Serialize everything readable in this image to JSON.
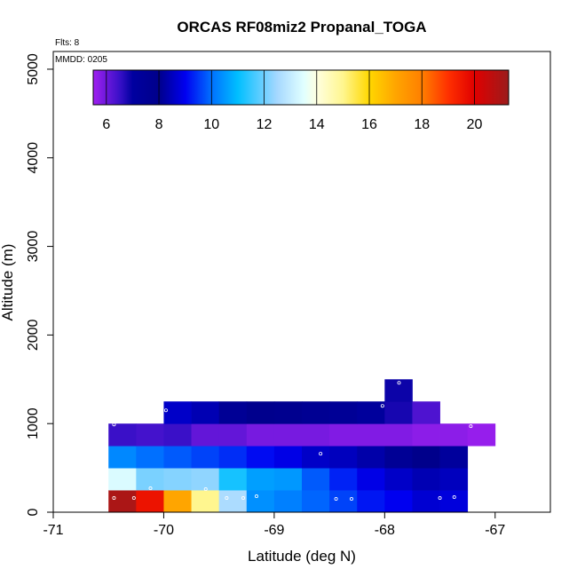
{
  "colors": {
    "frame": "#000000",
    "marker": "#ffffff"
  },
  "chart_data": {
    "type": "heatmap",
    "title": "ORCAS RF08miz2 Propanal_TOGA",
    "xlabel": "Latitude (deg N)",
    "ylabel": "Altitude (m)",
    "xlim": [
      -71,
      -66.5
    ],
    "ylim": [
      0,
      5200
    ],
    "x_ticks": [
      -71,
      -70,
      -69,
      -68,
      -67
    ],
    "x_tick_labels": [
      "-71",
      "-70",
      "-69",
      "-68",
      "-67"
    ],
    "y_ticks": [
      0,
      1000,
      2000,
      3000,
      4000,
      5000
    ],
    "y_tick_labels": [
      "0",
      "1000",
      "2000",
      "3000",
      "4000",
      "5000"
    ],
    "flights_note": "Flts: 8",
    "date_note": "MMDD: 0205",
    "colorbar": {
      "range": [
        5.5,
        21.3
      ],
      "ticks": [
        6,
        8,
        10,
        12,
        14,
        16,
        18,
        20
      ],
      "tick_labels": [
        "6",
        "8",
        "10",
        "12",
        "14",
        "16",
        "18",
        "20"
      ],
      "stops": [
        {
          "v": 5.5,
          "c": "#a020f0"
        },
        {
          "v": 6.5,
          "c": "#3a10c8"
        },
        {
          "v": 7.0,
          "c": "#0000a0"
        },
        {
          "v": 8.0,
          "c": "#00008b"
        },
        {
          "v": 9.0,
          "c": "#0000f0"
        },
        {
          "v": 10.0,
          "c": "#0070ff"
        },
        {
          "v": 11.0,
          "c": "#00bfff"
        },
        {
          "v": 12.5,
          "c": "#a6d8ff"
        },
        {
          "v": 13.5,
          "c": "#e0ffff"
        },
        {
          "v": 14.0,
          "c": "#ffffe0"
        },
        {
          "v": 15.0,
          "c": "#fff68f"
        },
        {
          "v": 16.0,
          "c": "#ffd700"
        },
        {
          "v": 17.0,
          "c": "#ffa500"
        },
        {
          "v": 18.0,
          "c": "#ff7f00"
        },
        {
          "v": 19.0,
          "c": "#ff3000"
        },
        {
          "v": 20.0,
          "c": "#e00000"
        },
        {
          "v": 21.3,
          "c": "#9b1c1c"
        }
      ]
    },
    "cells": [
      {
        "x0": -70.5,
        "x1": -70.25,
        "y0": 0,
        "y1": 250,
        "v": 21.0
      },
      {
        "x0": -70.25,
        "x1": -70.0,
        "y0": 0,
        "y1": 250,
        "v": 19.6
      },
      {
        "x0": -70.0,
        "x1": -69.75,
        "y0": 0,
        "y1": 250,
        "v": 17.0
      },
      {
        "x0": -69.75,
        "x1": -69.5,
        "y0": 0,
        "y1": 250,
        "v": 15.0
      },
      {
        "x0": -69.5,
        "x1": -69.25,
        "y0": 0,
        "y1": 250,
        "v": 12.6
      },
      {
        "x0": -69.25,
        "x1": -69.0,
        "y0": 0,
        "y1": 250,
        "v": 10.4
      },
      {
        "x0": -69.0,
        "x1": -68.75,
        "y0": 0,
        "y1": 250,
        "v": 10.2
      },
      {
        "x0": -68.75,
        "x1": -68.5,
        "y0": 0,
        "y1": 250,
        "v": 9.9
      },
      {
        "x0": -68.5,
        "x1": -68.25,
        "y0": 0,
        "y1": 250,
        "v": 9.6
      },
      {
        "x0": -68.25,
        "x1": -68.0,
        "y0": 0,
        "y1": 250,
        "v": 9.2
      },
      {
        "x0": -68.0,
        "x1": -67.75,
        "y0": 0,
        "y1": 250,
        "v": 9.0
      },
      {
        "x0": -67.75,
        "x1": -67.5,
        "y0": 0,
        "y1": 250,
        "v": 8.7
      },
      {
        "x0": -67.5,
        "x1": -67.25,
        "y0": 0,
        "y1": 250,
        "v": 8.8
      },
      {
        "x0": -70.5,
        "x1": -70.25,
        "y0": 250,
        "y1": 500,
        "v": 13.4
      },
      {
        "x0": -70.25,
        "x1": -70.0,
        "y0": 250,
        "y1": 500,
        "v": 12.1
      },
      {
        "x0": -70.0,
        "x1": -69.75,
        "y0": 250,
        "y1": 500,
        "v": 12.2
      },
      {
        "x0": -69.75,
        "x1": -69.5,
        "y0": 250,
        "y1": 500,
        "v": 12.3
      },
      {
        "x0": -69.5,
        "x1": -69.25,
        "y0": 250,
        "y1": 500,
        "v": 11.2
      },
      {
        "x0": -69.25,
        "x1": -69.0,
        "y0": 250,
        "y1": 500,
        "v": 10.6
      },
      {
        "x0": -69.0,
        "x1": -68.75,
        "y0": 250,
        "y1": 500,
        "v": 10.5
      },
      {
        "x0": -68.75,
        "x1": -68.5,
        "y0": 250,
        "y1": 500,
        "v": 9.8
      },
      {
        "x0": -68.5,
        "x1": -68.25,
        "y0": 250,
        "y1": 500,
        "v": 9.3
      },
      {
        "x0": -68.25,
        "x1": -68.0,
        "y0": 250,
        "y1": 500,
        "v": 8.9
      },
      {
        "x0": -68.0,
        "x1": -67.75,
        "y0": 250,
        "y1": 500,
        "v": 8.6
      },
      {
        "x0": -67.75,
        "x1": -67.5,
        "y0": 250,
        "y1": 500,
        "v": 8.4
      },
      {
        "x0": -67.5,
        "x1": -67.25,
        "y0": 250,
        "y1": 500,
        "v": 8.5
      },
      {
        "x0": -70.5,
        "x1": -70.25,
        "y0": 500,
        "y1": 750,
        "v": 10.3
      },
      {
        "x0": -70.25,
        "x1": -70.0,
        "y0": 500,
        "y1": 750,
        "v": 10.0
      },
      {
        "x0": -70.0,
        "x1": -69.75,
        "y0": 500,
        "y1": 750,
        "v": 9.8
      },
      {
        "x0": -69.75,
        "x1": -69.5,
        "y0": 500,
        "y1": 750,
        "v": 9.6
      },
      {
        "x0": -69.5,
        "x1": -69.25,
        "y0": 500,
        "y1": 750,
        "v": 9.4
      },
      {
        "x0": -69.25,
        "x1": -69.0,
        "y0": 500,
        "y1": 750,
        "v": 9.1
      },
      {
        "x0": -69.0,
        "x1": -68.75,
        "y0": 500,
        "y1": 750,
        "v": 8.9
      },
      {
        "x0": -68.75,
        "x1": -68.5,
        "y0": 500,
        "y1": 750,
        "v": 8.6
      },
      {
        "x0": -68.5,
        "x1": -68.25,
        "y0": 500,
        "y1": 750,
        "v": 8.5
      },
      {
        "x0": -68.25,
        "x1": -68.0,
        "y0": 500,
        "y1": 750,
        "v": 8.3
      },
      {
        "x0": -68.0,
        "x1": -67.75,
        "y0": 500,
        "y1": 750,
        "v": 8.1
      },
      {
        "x0": -67.75,
        "x1": -67.5,
        "y0": 500,
        "y1": 750,
        "v": 8.0
      },
      {
        "x0": -67.5,
        "x1": -67.25,
        "y0": 500,
        "y1": 750,
        "v": 7.2
      },
      {
        "x0": -70.5,
        "x1": -70.25,
        "y0": 750,
        "y1": 1000,
        "v": 6.5
      },
      {
        "x0": -70.25,
        "x1": -70.0,
        "y0": 750,
        "y1": 1000,
        "v": 6.4
      },
      {
        "x0": -70.0,
        "x1": -69.75,
        "y0": 750,
        "y1": 1000,
        "v": 6.5
      },
      {
        "x0": -69.75,
        "x1": -69.5,
        "y0": 750,
        "y1": 1000,
        "v": 6.1
      },
      {
        "x0": -69.5,
        "x1": -69.25,
        "y0": 750,
        "y1": 1000,
        "v": 6.1
      },
      {
        "x0": -69.25,
        "x1": -69.0,
        "y0": 750,
        "y1": 1000,
        "v": 5.9
      },
      {
        "x0": -69.0,
        "x1": -68.75,
        "y0": 750,
        "y1": 1000,
        "v": 5.9
      },
      {
        "x0": -68.75,
        "x1": -68.5,
        "y0": 750,
        "y1": 1000,
        "v": 5.9
      },
      {
        "x0": -68.5,
        "x1": -68.25,
        "y0": 750,
        "y1": 1000,
        "v": 5.8
      },
      {
        "x0": -68.25,
        "x1": -68.0,
        "y0": 750,
        "y1": 1000,
        "v": 5.8
      },
      {
        "x0": -68.0,
        "x1": -67.75,
        "y0": 750,
        "y1": 1000,
        "v": 5.8
      },
      {
        "x0": -67.75,
        "x1": -67.5,
        "y0": 750,
        "y1": 1000,
        "v": 5.7
      },
      {
        "x0": -67.5,
        "x1": -67.25,
        "y0": 750,
        "y1": 1000,
        "v": 5.7
      },
      {
        "x0": -67.25,
        "x1": -67.0,
        "y0": 750,
        "y1": 1000,
        "v": 5.6
      },
      {
        "x0": -70.0,
        "x1": -69.75,
        "y0": 1000,
        "y1": 1250,
        "v": 8.6
      },
      {
        "x0": -69.75,
        "x1": -69.5,
        "y0": 1000,
        "y1": 1250,
        "v": 8.4
      },
      {
        "x0": -69.5,
        "x1": -69.25,
        "y0": 1000,
        "y1": 1250,
        "v": 8.1
      },
      {
        "x0": -69.25,
        "x1": -69.0,
        "y0": 1000,
        "y1": 1250,
        "v": 7.9
      },
      {
        "x0": -69.0,
        "x1": -68.75,
        "y0": 1000,
        "y1": 1250,
        "v": 7.8
      },
      {
        "x0": -68.75,
        "x1": -68.5,
        "y0": 1000,
        "y1": 1250,
        "v": 7.6
      },
      {
        "x0": -68.5,
        "x1": -68.25,
        "y0": 1000,
        "y1": 1250,
        "v": 7.5
      },
      {
        "x0": -68.25,
        "x1": -68.0,
        "y0": 1000,
        "y1": 1250,
        "v": 7.2
      },
      {
        "x0": -68.0,
        "x1": -67.75,
        "y0": 1000,
        "y1": 1250,
        "v": 6.8
      },
      {
        "x0": -67.75,
        "x1": -67.5,
        "y0": 1000,
        "y1": 1250,
        "v": 6.3
      },
      {
        "x0": -68.0,
        "x1": -67.75,
        "y0": 1250,
        "y1": 1500,
        "v": 6.9
      }
    ],
    "sample_points": [
      {
        "x": -70.45,
        "y": 160
      },
      {
        "x": -70.27,
        "y": 160
      },
      {
        "x": -70.12,
        "y": 270
      },
      {
        "x": -69.62,
        "y": 260
      },
      {
        "x": -69.43,
        "y": 160
      },
      {
        "x": -69.28,
        "y": 160
      },
      {
        "x": -69.16,
        "y": 180
      },
      {
        "x": -68.44,
        "y": 150
      },
      {
        "x": -68.3,
        "y": 150
      },
      {
        "x": -67.5,
        "y": 160
      },
      {
        "x": -67.37,
        "y": 170
      },
      {
        "x": -68.58,
        "y": 660
      },
      {
        "x": -70.45,
        "y": 990
      },
      {
        "x": -69.98,
        "y": 1150
      },
      {
        "x": -68.02,
        "y": 1200
      },
      {
        "x": -67.87,
        "y": 1460
      },
      {
        "x": -67.22,
        "y": 970
      }
    ]
  }
}
